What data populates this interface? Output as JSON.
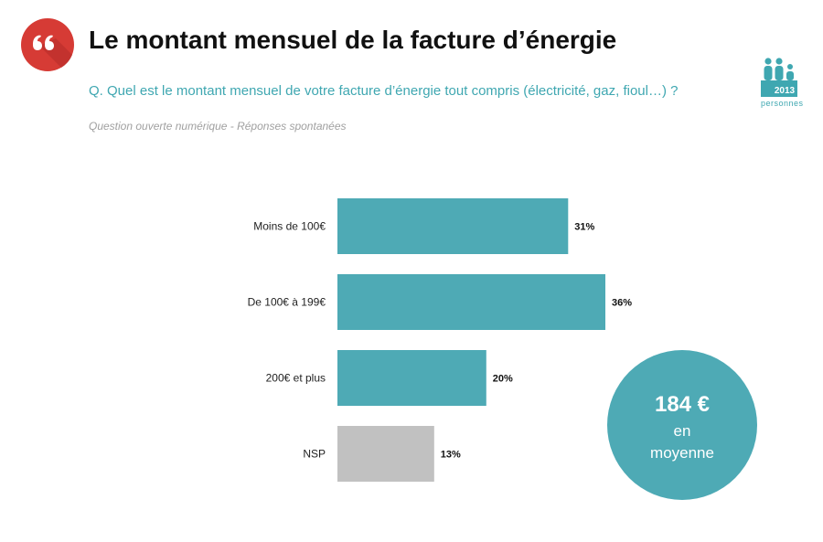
{
  "header": {
    "title": "Le montant mensuel de la facture d’énergie",
    "question": "Q. Quel est le montant mensuel de votre facture d’énergie tout compris (électricité, gaz, fioul…) ?",
    "note": "Question ouverte numérique - Réponses spontanées"
  },
  "sample": {
    "count": "2013",
    "label": "personnes"
  },
  "average": {
    "value": "184 €",
    "line1": "en",
    "line2": "moyenne"
  },
  "colors": {
    "accent": "#3fa7b1",
    "bar": "#4eaab5",
    "bar_nsp": "#c1c1c1",
    "badge": "#d63b35"
  },
  "chart_data": {
    "type": "bar",
    "orientation": "horizontal",
    "categories": [
      "Moins de 100€",
      "De 100€ à 199€",
      "200€ et plus",
      "NSP"
    ],
    "values": [
      31,
      36,
      20,
      13
    ],
    "value_labels": [
      "31%",
      "36%",
      "20%",
      "13%"
    ],
    "unit": "%",
    "xlim": [
      0,
      36
    ],
    "grid": false,
    "legend": "none"
  }
}
